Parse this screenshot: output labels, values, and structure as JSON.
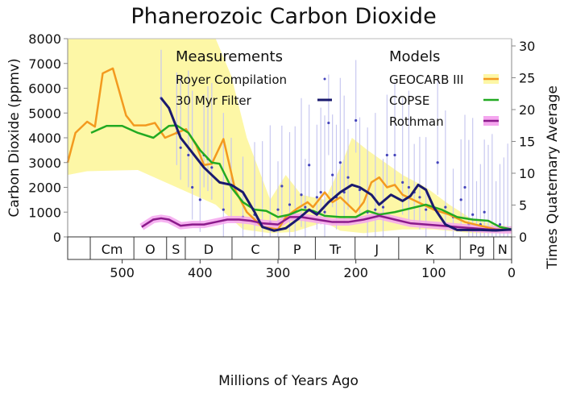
{
  "chart_data": {
    "type": "line",
    "title": "Phanerozoic Carbon Dioxide",
    "xlabel": "Millions of Years Ago",
    "ylabel": "Carbon Dioxide (ppmv)",
    "y2label": "Times Quaternary Average",
    "xlim": [
      570,
      0
    ],
    "ylim": [
      0,
      8000
    ],
    "y2lim": [
      0,
      30
    ],
    "xticks": [
      500,
      400,
      300,
      200,
      100,
      0
    ],
    "yticks": [
      0,
      1000,
      2000,
      3000,
      4000,
      5000,
      6000,
      7000,
      8000
    ],
    "y2ticks": [
      0,
      5,
      10,
      15,
      20,
      25,
      30
    ],
    "grid": false,
    "legend": {
      "measurements_title": "Measurements",
      "models_title": "Models",
      "placement": "top"
    },
    "periods": [
      {
        "label": "Cm",
        "start": 541,
        "end": 485
      },
      {
        "label": "O",
        "start": 485,
        "end": 443
      },
      {
        "label": "S",
        "start": 443,
        "end": 419
      },
      {
        "label": "D",
        "start": 419,
        "end": 359
      },
      {
        "label": "C",
        "start": 359,
        "end": 299
      },
      {
        "label": "P",
        "start": 299,
        "end": 252
      },
      {
        "label": "Tr",
        "start": 252,
        "end": 201
      },
      {
        "label": "J",
        "start": 201,
        "end": 145
      },
      {
        "label": "K",
        "start": 145,
        "end": 66
      },
      {
        "label": "Pg",
        "start": 66,
        "end": 23
      },
      {
        "label": "N",
        "start": 23,
        "end": 0
      }
    ],
    "geocarb_band": {
      "upper": [
        [
          570,
          8000
        ],
        [
          380,
          8000
        ],
        [
          360,
          6500
        ],
        [
          340,
          4000
        ],
        [
          310,
          1500
        ],
        [
          290,
          2500
        ],
        [
          270,
          1700
        ],
        [
          240,
          1500
        ],
        [
          220,
          2800
        ],
        [
          205,
          4000
        ],
        [
          185,
          3500
        ],
        [
          140,
          2500
        ],
        [
          110,
          2000
        ],
        [
          80,
          1300
        ],
        [
          50,
          700
        ],
        [
          20,
          500
        ],
        [
          0,
          400
        ]
      ],
      "lower": [
        [
          570,
          2500
        ],
        [
          545,
          2650
        ],
        [
          480,
          2700
        ],
        [
          430,
          2000
        ],
        [
          380,
          1300
        ],
        [
          345,
          300
        ],
        [
          310,
          150
        ],
        [
          280,
          200
        ],
        [
          240,
          600
        ],
        [
          220,
          250
        ],
        [
          190,
          150
        ],
        [
          140,
          300
        ],
        [
          100,
          300
        ],
        [
          50,
          150
        ],
        [
          0,
          150
        ]
      ],
      "color": "#fdf7a6"
    },
    "series": [
      {
        "name": "GEOCARB III",
        "group": "models",
        "color": "#f39a1f",
        "points": [
          [
            570,
            3000
          ],
          [
            560,
            4200
          ],
          [
            545,
            4650
          ],
          [
            535,
            4450
          ],
          [
            525,
            6600
          ],
          [
            512,
            6800
          ],
          [
            495,
            4900
          ],
          [
            485,
            4500
          ],
          [
            470,
            4500
          ],
          [
            458,
            4600
          ],
          [
            445,
            4000
          ],
          [
            430,
            4200
          ],
          [
            418,
            4350
          ],
          [
            405,
            3700
          ],
          [
            395,
            2900
          ],
          [
            385,
            2950
          ],
          [
            370,
            3950
          ],
          [
            355,
            1900
          ],
          [
            340,
            1000
          ],
          [
            320,
            400
          ],
          [
            300,
            300
          ],
          [
            290,
            800
          ],
          [
            275,
            1150
          ],
          [
            262,
            1400
          ],
          [
            255,
            1200
          ],
          [
            240,
            1800
          ],
          [
            230,
            1400
          ],
          [
            220,
            1600
          ],
          [
            210,
            1300
          ],
          [
            200,
            1000
          ],
          [
            190,
            1400
          ],
          [
            180,
            2200
          ],
          [
            170,
            2400
          ],
          [
            160,
            2000
          ],
          [
            150,
            2100
          ],
          [
            140,
            1700
          ],
          [
            120,
            1400
          ],
          [
            100,
            1100
          ],
          [
            80,
            900
          ],
          [
            60,
            600
          ],
          [
            40,
            450
          ],
          [
            20,
            300
          ],
          [
            0,
            300
          ]
        ]
      },
      {
        "name": "COPSE",
        "group": "models",
        "color": "#22aa22",
        "points": [
          [
            540,
            4200
          ],
          [
            520,
            4480
          ],
          [
            500,
            4480
          ],
          [
            480,
            4200
          ],
          [
            460,
            4000
          ],
          [
            440,
            4480
          ],
          [
            430,
            4500
          ],
          [
            415,
            4200
          ],
          [
            400,
            3500
          ],
          [
            385,
            3000
          ],
          [
            375,
            2950
          ],
          [
            360,
            2000
          ],
          [
            345,
            1400
          ],
          [
            330,
            1100
          ],
          [
            315,
            1050
          ],
          [
            300,
            800
          ],
          [
            285,
            900
          ],
          [
            270,
            1100
          ],
          [
            255,
            1050
          ],
          [
            240,
            850
          ],
          [
            220,
            800
          ],
          [
            200,
            800
          ],
          [
            185,
            1050
          ],
          [
            170,
            900
          ],
          [
            150,
            1000
          ],
          [
            130,
            1150
          ],
          [
            110,
            1300
          ],
          [
            90,
            1100
          ],
          [
            70,
            800
          ],
          [
            50,
            700
          ],
          [
            30,
            650
          ],
          [
            15,
            400
          ],
          [
            0,
            300
          ]
        ]
      },
      {
        "name": "Rothman",
        "group": "models",
        "color": "#8b1a8b",
        "band_color": "#f5a6ef",
        "points": [
          [
            475,
            400
          ],
          [
            460,
            700
          ],
          [
            450,
            750
          ],
          [
            440,
            700
          ],
          [
            425,
            450
          ],
          [
            410,
            500
          ],
          [
            395,
            500
          ],
          [
            380,
            600
          ],
          [
            365,
            700
          ],
          [
            350,
            700
          ],
          [
            335,
            650
          ],
          [
            320,
            550
          ],
          [
            300,
            500
          ],
          [
            285,
            800
          ],
          [
            270,
            800
          ],
          [
            250,
            700
          ],
          [
            230,
            600
          ],
          [
            210,
            600
          ],
          [
            190,
            700
          ],
          [
            170,
            850
          ],
          [
            150,
            700
          ],
          [
            130,
            550
          ],
          [
            110,
            500
          ],
          [
            90,
            450
          ],
          [
            70,
            400
          ],
          [
            50,
            350
          ],
          [
            30,
            300
          ],
          [
            10,
            280
          ],
          [
            0,
            280
          ]
        ]
      },
      {
        "name": "30 Myr Filter",
        "group": "measurements",
        "color": "#1a1a6e",
        "points": [
          [
            450,
            5600
          ],
          [
            440,
            5200
          ],
          [
            425,
            4000
          ],
          [
            410,
            3400
          ],
          [
            395,
            2800
          ],
          [
            375,
            2200
          ],
          [
            360,
            2100
          ],
          [
            345,
            1800
          ],
          [
            330,
            1000
          ],
          [
            320,
            400
          ],
          [
            305,
            250
          ],
          [
            290,
            350
          ],
          [
            275,
            700
          ],
          [
            260,
            1100
          ],
          [
            250,
            900
          ],
          [
            235,
            1400
          ],
          [
            220,
            1800
          ],
          [
            205,
            2100
          ],
          [
            195,
            2000
          ],
          [
            180,
            1700
          ],
          [
            170,
            1300
          ],
          [
            155,
            1700
          ],
          [
            140,
            1450
          ],
          [
            130,
            1650
          ],
          [
            120,
            2100
          ],
          [
            110,
            1900
          ],
          [
            100,
            1200
          ],
          [
            85,
            500
          ],
          [
            70,
            280
          ],
          [
            55,
            280
          ],
          [
            40,
            280
          ],
          [
            20,
            260
          ],
          [
            0,
            300
          ]
        ]
      },
      {
        "name": "Royer Compilation",
        "group": "measurements",
        "color": "#4444bb",
        "marker": "point",
        "points": [
          [
            450,
            5600
          ],
          [
            430,
            4200
          ],
          [
            425,
            3600
          ],
          [
            415,
            3300
          ],
          [
            410,
            2000
          ],
          [
            400,
            1500
          ],
          [
            395,
            3300
          ],
          [
            390,
            3150
          ],
          [
            385,
            2800
          ],
          [
            370,
            1100
          ],
          [
            360,
            2050
          ],
          [
            345,
            800
          ],
          [
            330,
            900
          ],
          [
            320,
            450
          ],
          [
            310,
            600
          ],
          [
            300,
            1100
          ],
          [
            295,
            2050
          ],
          [
            285,
            1300
          ],
          [
            278,
            1050
          ],
          [
            270,
            1700
          ],
          [
            265,
            1200
          ],
          [
            260,
            2900
          ],
          [
            250,
            1600
          ],
          [
            245,
            1800
          ],
          [
            240,
            1000
          ],
          [
            235,
            4600
          ],
          [
            230,
            2500
          ],
          [
            225,
            1600
          ],
          [
            220,
            3000
          ],
          [
            215,
            1800
          ],
          [
            210,
            2400
          ],
          [
            200,
            4700
          ],
          [
            195,
            1900
          ],
          [
            185,
            1000
          ],
          [
            175,
            1100
          ],
          [
            165,
            1200
          ],
          [
            160,
            3300
          ],
          [
            150,
            3300
          ],
          [
            140,
            2200
          ],
          [
            132,
            2000
          ],
          [
            125,
            1800
          ],
          [
            118,
            1600
          ],
          [
            110,
            1100
          ],
          [
            95,
            3000
          ],
          [
            85,
            1200
          ],
          [
            75,
            800
          ],
          [
            65,
            1500
          ],
          [
            60,
            2000
          ],
          [
            55,
            500
          ],
          [
            50,
            900
          ],
          [
            45,
            300
          ],
          [
            40,
            500
          ],
          [
            35,
            1000
          ],
          [
            30,
            300
          ],
          [
            25,
            250
          ],
          [
            20,
            300
          ],
          [
            15,
            500
          ],
          [
            10,
            280
          ],
          [
            5,
            350
          ]
        ]
      }
    ]
  }
}
